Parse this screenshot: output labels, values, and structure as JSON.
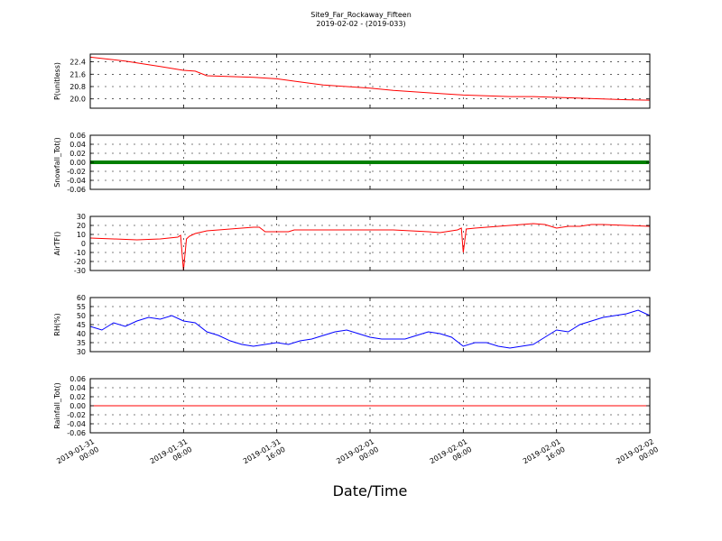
{
  "title": "Site9_Far_Rockaway_Fifteen",
  "subtitle": "2019-02-02 - (2019-033)",
  "xlabel": "Date/Time",
  "x_ticks": [
    [
      "2019-01-31",
      "00:00"
    ],
    [
      "2019-01-31",
      "08:00"
    ],
    [
      "2019-01-31",
      "16:00"
    ],
    [
      "2019-02-01",
      "00:00"
    ],
    [
      "2019-02-01",
      "08:00"
    ],
    [
      "2019-02-01",
      "16:00"
    ],
    [
      "2019-02-02",
      "00:00"
    ]
  ],
  "chart_data": [
    {
      "type": "line",
      "ylabel": "P(unitless)",
      "ylim": [
        19.4,
        22.9
      ],
      "yticks": [
        "20.0",
        "20.8",
        "21.6",
        "22.4"
      ],
      "grid": true,
      "color": "#ff0000",
      "series": [
        {
          "x": [
            "2019-01-31 00:00",
            "2019-01-31 03:00",
            "2019-01-31 06:00",
            "2019-01-31 08:00",
            "2019-01-31 09:00",
            "2019-01-31 10:00",
            "2019-01-31 12:00",
            "2019-01-31 14:00",
            "2019-01-31 16:00",
            "2019-01-31 18:00",
            "2019-01-31 20:00",
            "2019-01-31 22:00",
            "2019-02-01 00:00",
            "2019-02-01 02:00",
            "2019-02-01 04:00",
            "2019-02-01 06:00",
            "2019-02-01 08:00",
            "2019-02-01 10:00",
            "2019-02-01 12:00",
            "2019-02-01 14:00",
            "2019-02-01 16:00",
            "2019-02-01 18:00",
            "2019-02-01 20:00",
            "2019-02-01 22:00",
            "2019-02-02 00:00"
          ],
          "y": [
            22.7,
            22.45,
            22.1,
            21.85,
            21.8,
            21.5,
            21.45,
            21.4,
            21.3,
            21.1,
            20.9,
            20.8,
            20.7,
            20.55,
            20.45,
            20.35,
            20.25,
            20.2,
            20.15,
            20.15,
            20.1,
            20.05,
            20.0,
            19.95,
            19.92
          ]
        }
      ]
    },
    {
      "type": "scatter",
      "ylabel": "Snowfall_Tot()",
      "ylim": [
        -0.06,
        0.06
      ],
      "yticks": [
        "0.06",
        "0.04",
        "0.02",
        "0.00",
        "-0.02",
        "-0.04",
        "-0.06"
      ],
      "grid": true,
      "color": "#008000",
      "series": [
        {
          "x_range": [
            "2019-01-31 00:00",
            "2019-02-02 00:00"
          ],
          "y_constant": 0.0
        }
      ]
    },
    {
      "type": "line",
      "ylabel": "AirTF()",
      "ylim": [
        -30,
        30
      ],
      "yticks": [
        "30",
        "20",
        "10",
        "0",
        "-10",
        "-20",
        "-30"
      ],
      "grid": true,
      "color": "#ff0000",
      "series": [
        {
          "x": [
            "2019-01-31 00:00",
            "2019-01-31 02:00",
            "2019-01-31 04:00",
            "2019-01-31 06:00",
            "2019-01-31 07:30",
            "2019-01-31 07:45",
            "2019-01-31 08:00",
            "2019-01-31 08:15",
            "2019-01-31 08:30",
            "2019-01-31 09:00",
            "2019-01-31 10:00",
            "2019-01-31 12:00",
            "2019-01-31 14:00",
            "2019-01-31 14:30",
            "2019-01-31 15:00",
            "2019-01-31 17:00",
            "2019-01-31 17:30",
            "2019-01-31 20:00",
            "2019-01-31 23:00",
            "2019-02-01 02:00",
            "2019-02-01 05:00",
            "2019-02-01 06:00",
            "2019-02-01 07:30",
            "2019-02-01 07:50",
            "2019-02-01 08:00",
            "2019-02-01 08:15",
            "2019-02-01 09:00",
            "2019-02-01 11:00",
            "2019-02-01 13:00",
            "2019-02-01 14:00",
            "2019-02-01 15:00",
            "2019-02-01 16:00",
            "2019-02-01 17:00",
            "2019-02-01 18:00",
            "2019-02-01 19:00",
            "2019-02-01 20:00",
            "2019-02-01 22:00",
            "2019-02-02 00:00"
          ],
          "y": [
            6,
            5,
            4,
            5,
            7,
            9,
            -30,
            5,
            8,
            11,
            14,
            16,
            18,
            18,
            13,
            13,
            15,
            15,
            15,
            15,
            13,
            12,
            15,
            17,
            -10,
            16,
            17,
            19,
            21,
            22,
            21,
            17,
            19,
            19,
            21,
            21,
            20,
            19
          ]
        }
      ]
    },
    {
      "type": "line",
      "ylabel": "RH(%)",
      "ylim": [
        30,
        60
      ],
      "yticks": [
        "60",
        "55",
        "50",
        "45",
        "40",
        "35",
        "30"
      ],
      "grid": true,
      "color": "#0000ff",
      "series": [
        {
          "x": [
            "2019-01-31 00:00",
            "2019-01-31 01:00",
            "2019-01-31 02:00",
            "2019-01-31 03:00",
            "2019-01-31 04:00",
            "2019-01-31 05:00",
            "2019-01-31 06:00",
            "2019-01-31 07:00",
            "2019-01-31 08:00",
            "2019-01-31 09:00",
            "2019-01-31 10:00",
            "2019-01-31 11:00",
            "2019-01-31 12:00",
            "2019-01-31 13:00",
            "2019-01-31 14:00",
            "2019-01-31 15:00",
            "2019-01-31 16:00",
            "2019-01-31 17:00",
            "2019-01-31 18:00",
            "2019-01-31 19:00",
            "2019-01-31 20:00",
            "2019-01-31 21:00",
            "2019-01-31 22:00",
            "2019-01-31 23:00",
            "2019-02-01 00:00",
            "2019-02-01 01:00",
            "2019-02-01 02:00",
            "2019-02-01 03:00",
            "2019-02-01 04:00",
            "2019-02-01 05:00",
            "2019-02-01 06:00",
            "2019-02-01 07:00",
            "2019-02-01 08:00",
            "2019-02-01 09:00",
            "2019-02-01 10:00",
            "2019-02-01 11:00",
            "2019-02-01 12:00",
            "2019-02-01 13:00",
            "2019-02-01 14:00",
            "2019-02-01 15:00",
            "2019-02-01 16:00",
            "2019-02-01 17:00",
            "2019-02-01 18:00",
            "2019-02-01 19:00",
            "2019-02-01 20:00",
            "2019-02-01 21:00",
            "2019-02-01 22:00",
            "2019-02-01 23:00",
            "2019-02-02 00:00"
          ],
          "y": [
            44,
            42,
            46,
            44,
            47,
            49,
            48,
            50,
            47,
            46,
            41,
            39,
            36,
            34,
            33,
            34,
            35,
            34,
            36,
            37,
            39,
            41,
            42,
            40,
            38,
            37,
            37,
            37,
            39,
            41,
            40,
            38,
            33,
            35,
            35,
            33,
            32,
            33,
            34,
            38,
            42,
            41,
            45,
            47,
            49,
            50,
            51,
            53,
            50
          ]
        }
      ]
    },
    {
      "type": "line",
      "ylabel": "Rainfall_Tot()",
      "ylim": [
        -0.06,
        0.06
      ],
      "yticks": [
        "0.06",
        "0.04",
        "0.02",
        "0.00",
        "-0.02",
        "-0.04",
        "-0.06"
      ],
      "grid": true,
      "color": "#ff0000",
      "series": [
        {
          "x_range": [
            "2019-01-31 00:00",
            "2019-02-02 00:00"
          ],
          "y_constant": 0.0
        }
      ]
    }
  ]
}
